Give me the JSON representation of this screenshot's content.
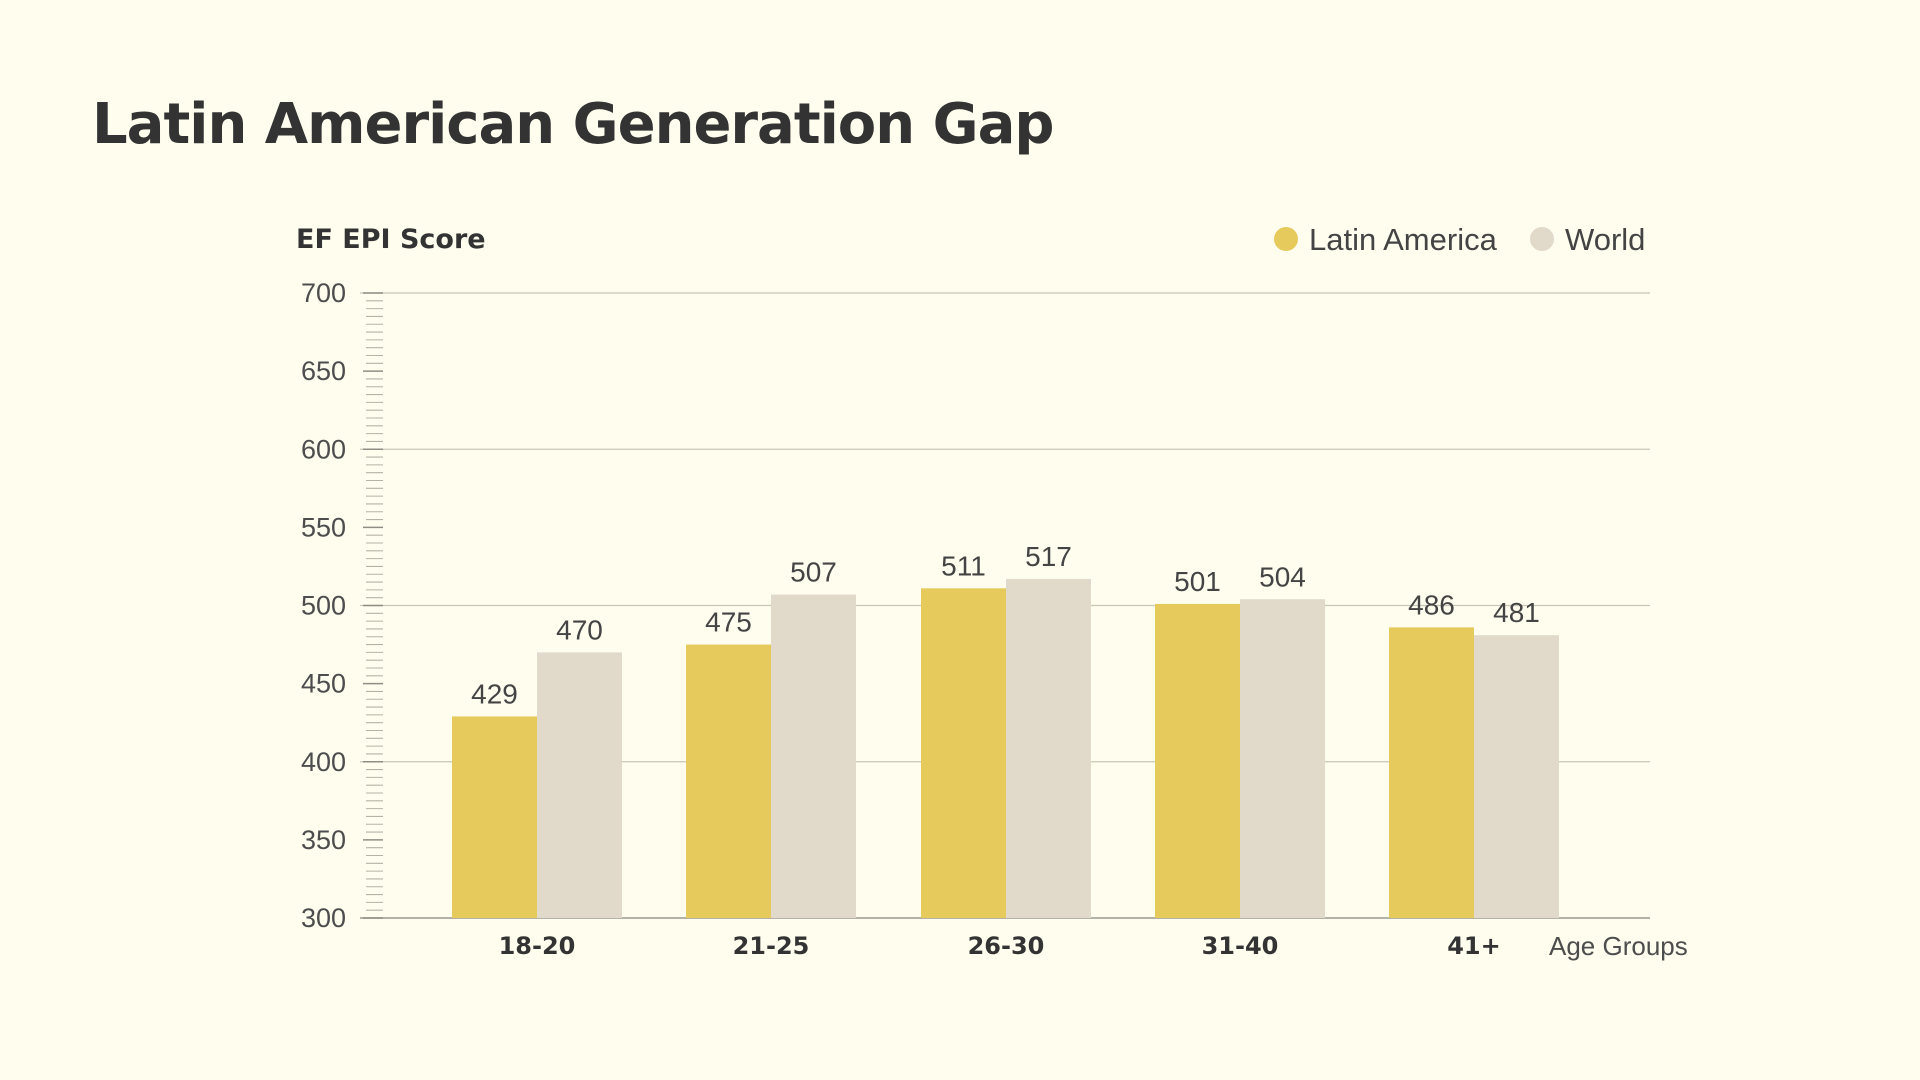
{
  "page": {
    "title": "Latin American Generation Gap"
  },
  "colors": {
    "background": "#fffdee",
    "latin_america": "#e6ca5c",
    "world": "#e1d9ca",
    "grid": "#c8c6b4",
    "axis": "#9a9a90"
  },
  "chart_data": {
    "type": "bar",
    "title": "Latin American Generation Gap",
    "ylabel": "EF EPI Score",
    "xlabel": "Age Groups",
    "ylim": [
      300,
      700
    ],
    "yticks": [
      300,
      350,
      400,
      450,
      500,
      550,
      600,
      650,
      700
    ],
    "gridlines": [
      400,
      500,
      600,
      700
    ],
    "legend_position": "top-right",
    "categories": [
      "18-20",
      "21-25",
      "26-30",
      "31-40",
      "41+"
    ],
    "series": [
      {
        "name": "Latin America",
        "color": "#e6ca5c",
        "values": [
          429,
          475,
          511,
          501,
          486
        ]
      },
      {
        "name": "World",
        "color": "#e1d9ca",
        "values": [
          470,
          507,
          517,
          504,
          481
        ]
      }
    ]
  }
}
